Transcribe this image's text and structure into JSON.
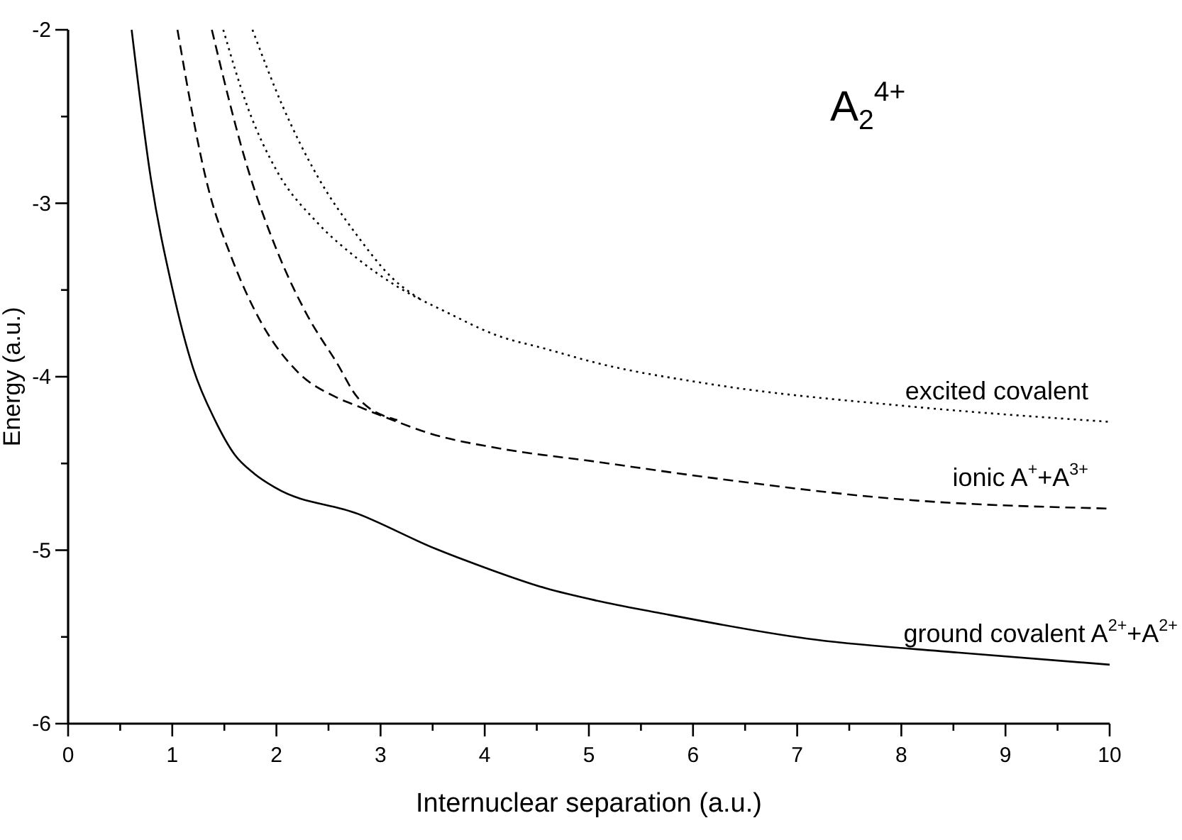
{
  "chart_data": {
    "type": "line",
    "title": "A$_{2}$$^{4+}$",
    "xlabel": "Internuclear separation (a.u.)",
    "ylabel": "Energy (a.u.)",
    "xlim": [
      0,
      10
    ],
    "ylim": [
      -6,
      -2
    ],
    "xticks": [
      0,
      {
        "value": 0.5,
        "label": null
      },
      1,
      {
        "value": 1.5,
        "label": null
      },
      2,
      {
        "value": 2.5,
        "label": null
      },
      3,
      {
        "value": 3.5,
        "label": null
      },
      4,
      {
        "value": 4.5,
        "label": null
      },
      5,
      {
        "value": 5.5,
        "label": null
      },
      6,
      {
        "value": 6.5,
        "label": null
      },
      7,
      {
        "value": 7.5,
        "label": null
      },
      8,
      {
        "value": 8.5,
        "label": null
      },
      9,
      {
        "value": 9.5,
        "label": null
      },
      10
    ],
    "yticks": [
      -6,
      {
        "value": -5.5,
        "label": null
      },
      -5,
      {
        "value": -4.5,
        "label": null
      },
      -4,
      {
        "value": -3.5,
        "label": null
      },
      -3,
      {
        "value": -2.5,
        "label": null
      },
      -2
    ],
    "grid": false,
    "marker": "none",
    "series": [
      {
        "name": "excited covalent",
        "color": "#000000",
        "line_style": "dotted",
        "x": [
          1.49,
          1.72,
          2.01,
          2.39,
          2.78,
          3.16,
          3.64,
          4.11,
          4.59,
          5.07,
          6.14,
          8.06,
          10
        ],
        "values": [
          -2,
          -2.44,
          -2.82,
          -3.11,
          -3.32,
          -3.48,
          -3.63,
          -3.76,
          -3.84,
          -3.92,
          -4.04,
          -4.17,
          -4.26
        ]
      },
      {
        "color": "#000000",
        "line_style": "dotted",
        "x": [
          1.77,
          2.06,
          2.39,
          2.78,
          3.11,
          3.4
        ],
        "values": [
          -2,
          -2.44,
          -2.84,
          -3.19,
          -3.43,
          -3.56
        ]
      },
      {
        "name": "ionic A$^{+}$+A$^{3+}$",
        "color": "#000000",
        "line_style": "dashed",
        "x": [
          1.05,
          1.34,
          1.58,
          1.82,
          2.2,
          2.58,
          2.78,
          3.16,
          3.49,
          4.11,
          5.07,
          6.14,
          8.06,
          10
        ],
        "values": [
          -2,
          -2.9,
          -3.33,
          -3.65,
          -3.97,
          -4.12,
          -4.17,
          -4.26,
          -4.33,
          -4.41,
          -4.49,
          -4.58,
          -4.71,
          -4.76
        ]
      },
      {
        "color": "#000000",
        "line_style": "dashed",
        "x": [
          1.38,
          1.72,
          2.01,
          2.3,
          2.58,
          2.78,
          3.16
        ],
        "values": [
          -2,
          -2.79,
          -3.28,
          -3.65,
          -3.92,
          -4.12,
          -4.25
        ]
      },
      {
        "name": "ground covalent A$^{2+}$+A$^{2+}$",
        "color": "#000000",
        "line_style": "solid",
        "x": [
          0.61,
          0.79,
          1.0,
          1.2,
          1.41,
          1.6,
          1.79,
          1.99,
          2.78,
          3.52,
          4.0,
          4.59,
          5.07,
          5.66,
          7.1,
          8.54,
          10
        ],
        "values": [
          -2,
          -2.84,
          -3.49,
          -3.95,
          -4.25,
          -4.45,
          -4.56,
          -4.64,
          -4.79,
          -4.99,
          -5.1,
          -5.22,
          -5.29,
          -5.36,
          -5.51,
          -5.59,
          -5.66
        ]
      }
    ]
  }
}
